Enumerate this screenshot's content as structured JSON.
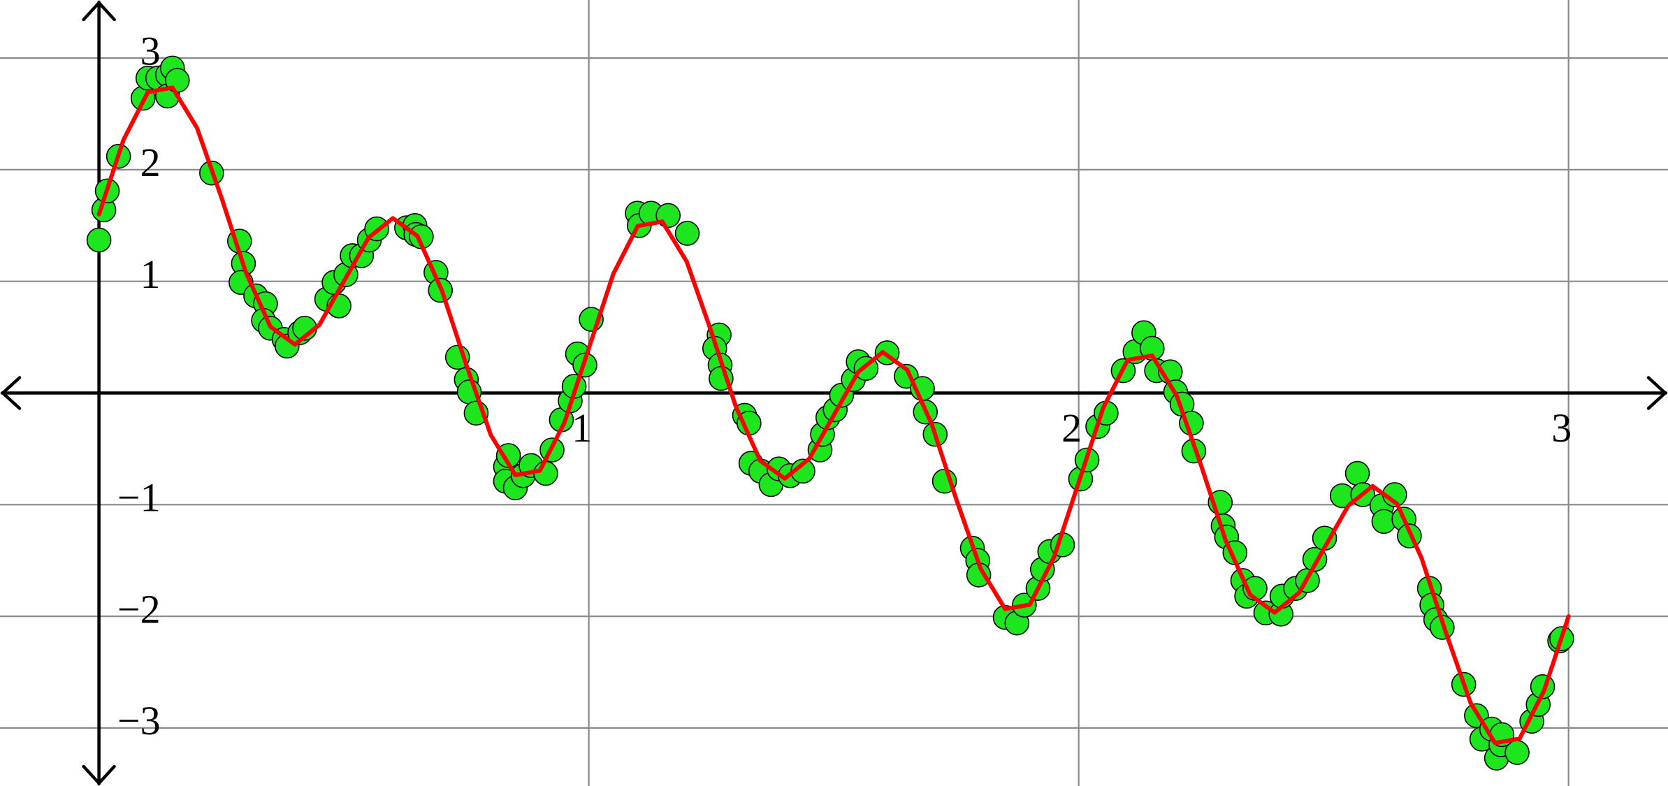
{
  "chart_data": {
    "type": "scatter",
    "xlim": [
      -0.202,
      3.203
    ],
    "ylim": [
      -3.52,
      3.52
    ],
    "xticks": [
      1,
      2,
      3
    ],
    "yticks": [
      {
        "value": -3,
        "label": "−3"
      },
      {
        "value": -2,
        "label": "−2"
      },
      {
        "value": -1,
        "label": "−1"
      },
      1,
      2,
      3
    ],
    "grid": true,
    "series": [
      {
        "type": "scatter",
        "color": "#1ee61e",
        "x": [
          0,
          0.01,
          0.017,
          0.04,
          0.09,
          0.1,
          0.12,
          0.14,
          0.15,
          0.14,
          0.16,
          0.23,
          0.287,
          0.295,
          0.29,
          0.32,
          0.34,
          0.336,
          0.35,
          0.378,
          0.384,
          0.41,
          0.42,
          0.465,
          0.48,
          0.49,
          0.504,
          0.517,
          0.536,
          0.552,
          0.567,
          0.628,
          0.645,
          0.647,
          0.658,
          0.688,
          0.697,
          0.732,
          0.75,
          0.756,
          0.77,
          0.83,
          0.836,
          0.83,
          0.85,
          0.866,
          0.882,
          0.912,
          0.925,
          0.944,
          0.962,
          0.97,
          0.977,
          0.992,
          1.005,
          1.099,
          1.103,
          1.127,
          1.162,
          1.201,
          1.266,
          1.257,
          1.268,
          1.27,
          1.318,
          1.327,
          1.331,
          1.351,
          1.372,
          1.388,
          1.411,
          1.437,
          1.472,
          1.477,
          1.488,
          1.503,
          1.516,
          1.54,
          1.55,
          1.566,
          1.609,
          1.648,
          1.681,
          1.687,
          1.707,
          1.726,
          1.783,
          1.794,
          1.796,
          1.85,
          1.874,
          1.889,
          1.917,
          1.926,
          1.941,
          1.967,
          2.004,
          2.017,
          2.039,
          2.056,
          2.091,
          2.115,
          2.133,
          2.15,
          2.159,
          2.187,
          2.198,
          2.211,
          2.23,
          2.235,
          2.289,
          2.295,
          2.302,
          2.319,
          2.335,
          2.343,
          2.36,
          2.382,
          2.413,
          2.415,
          2.443,
          2.467,
          2.482,
          2.502,
          2.538,
          2.569,
          2.58,
          2.619,
          2.623,
          2.645,
          2.664,
          2.675,
          2.716,
          2.721,
          2.729,
          2.742,
          2.786,
          2.812,
          2.823,
          2.843,
          2.853,
          2.862,
          2.895,
          2.864,
          2.925,
          2.938,
          2.947,
          2.982,
          2.986
        ],
        "values": [
          1.37,
          1.64,
          1.81,
          2.12,
          2.64,
          2.82,
          2.82,
          2.85,
          2.91,
          2.66,
          2.8,
          1.97,
          1.36,
          1.16,
          0.99,
          0.87,
          0.8,
          0.65,
          0.58,
          0.48,
          0.42,
          0.54,
          0.58,
          0.84,
          0.99,
          0.78,
          1.06,
          1.23,
          1.23,
          1.37,
          1.47,
          1.48,
          1.5,
          1.42,
          1.4,
          1.08,
          0.92,
          0.32,
          0.12,
          0.01,
          -0.18,
          -0.66,
          -0.56,
          -0.79,
          -0.85,
          -0.74,
          -0.65,
          -0.72,
          -0.51,
          -0.24,
          -0.07,
          0.06,
          0.35,
          0.25,
          0.66,
          1.61,
          1.5,
          1.61,
          1.59,
          1.43,
          0.52,
          0.4,
          0.25,
          0.13,
          -0.2,
          -0.27,
          -0.63,
          -0.7,
          -0.82,
          -0.68,
          -0.74,
          -0.7,
          -0.51,
          -0.37,
          -0.22,
          -0.15,
          -0.02,
          0.12,
          0.28,
          0.22,
          0.36,
          0.15,
          0.04,
          -0.17,
          -0.37,
          -0.79,
          -1.39,
          -1.5,
          -1.63,
          -2.01,
          -2.06,
          -1.9,
          -1.75,
          -1.58,
          -1.42,
          -1.36,
          -0.77,
          -0.6,
          -0.3,
          -0.18,
          0.2,
          0.37,
          0.54,
          0.4,
          0.2,
          0.19,
          0.01,
          -0.1,
          -0.27,
          -0.52,
          -0.98,
          -1.19,
          -1.29,
          -1.43,
          -1.68,
          -1.82,
          -1.75,
          -1.97,
          -1.98,
          -1.82,
          -1.75,
          -1.68,
          -1.49,
          -1.3,
          -0.92,
          -0.72,
          -0.91,
          -1.01,
          -1.15,
          -0.91,
          -1.13,
          -1.28,
          -1.75,
          -1.9,
          -2.03,
          -2.1,
          -2.61,
          -2.89,
          -3.1,
          -3.01,
          -3.27,
          -3.15,
          -3.22,
          -3.06,
          -2.94,
          -2.79,
          -2.63,
          -2.22,
          -2.2
        ]
      },
      {
        "type": "line",
        "color": "#ff0000",
        "x": [
          0,
          0.05,
          0.1,
          0.15,
          0.2,
          0.25,
          0.3,
          0.35,
          0.4,
          0.45,
          0.5,
          0.55,
          0.6,
          0.65,
          0.7,
          0.75,
          0.8,
          0.85,
          0.9,
          0.95,
          1,
          1.05,
          1.1,
          1.15,
          1.2,
          1.25,
          1.3,
          1.35,
          1.4,
          1.45,
          1.5,
          1.55,
          1.6,
          1.65,
          1.7,
          1.75,
          1.8,
          1.85,
          1.9,
          1.95,
          2,
          2.05,
          2.1,
          2.15,
          2.2,
          2.25,
          2.3,
          2.35,
          2.4,
          2.45,
          2.5,
          2.55,
          2.6,
          2.65,
          2.7,
          2.75,
          2.8,
          2.85,
          2.9,
          2.95,
          3
        ],
        "values": [
          1.6,
          2.267,
          2.696,
          2.735,
          2.376,
          1.75,
          1.08,
          0.593,
          0.434,
          0.611,
          1.0,
          1.389,
          1.566,
          1.407,
          0.92,
          0.25,
          -0.376,
          -0.735,
          -0.696,
          -0.267,
          0.4,
          1.067,
          1.496,
          1.535,
          1.176,
          0.55,
          -0.12,
          -0.607,
          -0.766,
          -0.589,
          -0.2,
          0.189,
          0.366,
          0.207,
          -0.28,
          -0.95,
          -1.576,
          -1.935,
          -1.896,
          -1.467,
          -0.8,
          -0.133,
          0.296,
          0.335,
          -0.024,
          -0.65,
          -1.32,
          -1.807,
          -1.966,
          -1.789,
          -1.4,
          -1.011,
          -0.834,
          -0.993,
          -1.48,
          -2.15,
          -2.776,
          -3.135,
          -3.096,
          -2.667,
          -2.0
        ]
      }
    ]
  }
}
